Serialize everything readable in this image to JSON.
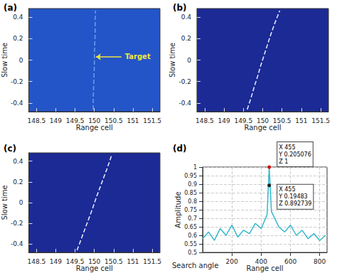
{
  "chart_data": [
    {
      "type": "line",
      "title": "(a)",
      "xlabel": "Range cell",
      "ylabel": "Slow time",
      "xlim": [
        148.3,
        151.7
      ],
      "xticks": [
        148.5,
        149,
        149.5,
        150,
        150.5,
        151,
        151.5
      ],
      "ylim": [
        -0.48,
        0.48
      ],
      "yticks": [
        -0.4,
        -0.2,
        0,
        0.2,
        0.4
      ],
      "series": [
        {
          "color": "#6f9df0",
          "line_style": "dashed",
          "marker": "none",
          "x": [
            149.97,
            149.97,
            149.98,
            149.99,
            150.0,
            150.0,
            150.01,
            150.02,
            150.02,
            150.03
          ],
          "y": [
            -0.46,
            -0.35,
            -0.25,
            -0.15,
            -0.05,
            0.05,
            0.15,
            0.25,
            0.35,
            0.46
          ]
        }
      ],
      "annotations": [
        {
          "text": "Target",
          "x": 150.7,
          "y": 0.03,
          "arrow_to": [
            150.04,
            0.03
          ],
          "color": "#f2e640"
        }
      ]
    },
    {
      "type": "line",
      "title": "(b)",
      "xlabel": "Range cell",
      "ylabel": "Slow time",
      "xlim": [
        148.3,
        151.7
      ],
      "xticks": [
        148.5,
        149,
        149.5,
        150,
        150.5,
        151,
        151.5
      ],
      "ylim": [
        -0.48,
        0.48
      ],
      "yticks": [
        -0.4,
        -0.2,
        0,
        0.2,
        0.4
      ],
      "series": [
        {
          "color": "#e8f0ff",
          "line_style": "dashed",
          "marker": "none",
          "x": [
            149.6,
            149.7,
            149.78,
            149.87,
            149.95,
            150.04,
            150.13,
            150.22,
            150.32,
            150.44
          ],
          "y": [
            -0.46,
            -0.35,
            -0.25,
            -0.15,
            -0.05,
            0.05,
            0.15,
            0.25,
            0.35,
            0.46
          ]
        }
      ]
    },
    {
      "type": "line",
      "title": "(c)",
      "xlabel": "Range cell",
      "ylabel": "Slow time",
      "xlim": [
        148.3,
        151.7
      ],
      "xticks": [
        148.5,
        149,
        149.5,
        150,
        150.5,
        151,
        151.5
      ],
      "ylim": [
        -0.48,
        0.48
      ],
      "yticks": [
        -0.4,
        -0.2,
        0,
        0.2,
        0.4
      ],
      "series": [
        {
          "color": "#e8f0ff",
          "line_style": "dashed",
          "marker": "none",
          "x": [
            149.55,
            149.66,
            149.76,
            149.86,
            149.96,
            150.05,
            150.15,
            150.25,
            150.35,
            150.45
          ],
          "y": [
            -0.46,
            -0.35,
            -0.25,
            -0.15,
            -0.05,
            0.05,
            0.15,
            0.25,
            0.35,
            0.46
          ]
        }
      ]
    },
    {
      "type": "line",
      "title": "(d)",
      "xlabel": "Range cell",
      "ylabel": "Amplitude",
      "zlabel": "Search angle",
      "xlim": [
        0,
        850
      ],
      "xticks": [
        200,
        400,
        600,
        800
      ],
      "ylim": [
        0.5,
        1
      ],
      "yticks": [
        0.5,
        0.55,
        0.6,
        0.65,
        0.7,
        0.75,
        0.8,
        0.85,
        0.9,
        0.95,
        1
      ],
      "grid": true,
      "series": [
        {
          "color": "#34b8cc",
          "line_style": "solid",
          "marker": "none",
          "x": [
            0,
            40,
            80,
            120,
            160,
            200,
            240,
            280,
            320,
            360,
            400,
            440,
            455,
            470,
            520,
            560,
            600,
            640,
            680,
            720,
            760,
            800,
            840
          ],
          "y": [
            0.58,
            0.62,
            0.57,
            0.64,
            0.6,
            0.66,
            0.59,
            0.63,
            0.61,
            0.67,
            0.64,
            0.72,
            1,
            0.74,
            0.65,
            0.62,
            0.66,
            0.6,
            0.63,
            0.58,
            0.61,
            0.57,
            0.6
          ]
        }
      ],
      "annotations": [
        {
          "x": 455,
          "y": 0.205076,
          "z": 1,
          "text": [
            "X 455",
            "Y 0.205076",
            "Z 1"
          ],
          "color": "#d01010"
        },
        {
          "x": 455,
          "y": 0.19483,
          "z": 0.892739,
          "text": [
            "X 455",
            "Y 0.19483",
            "Z 0.892739"
          ],
          "color": "#202020"
        }
      ]
    }
  ]
}
